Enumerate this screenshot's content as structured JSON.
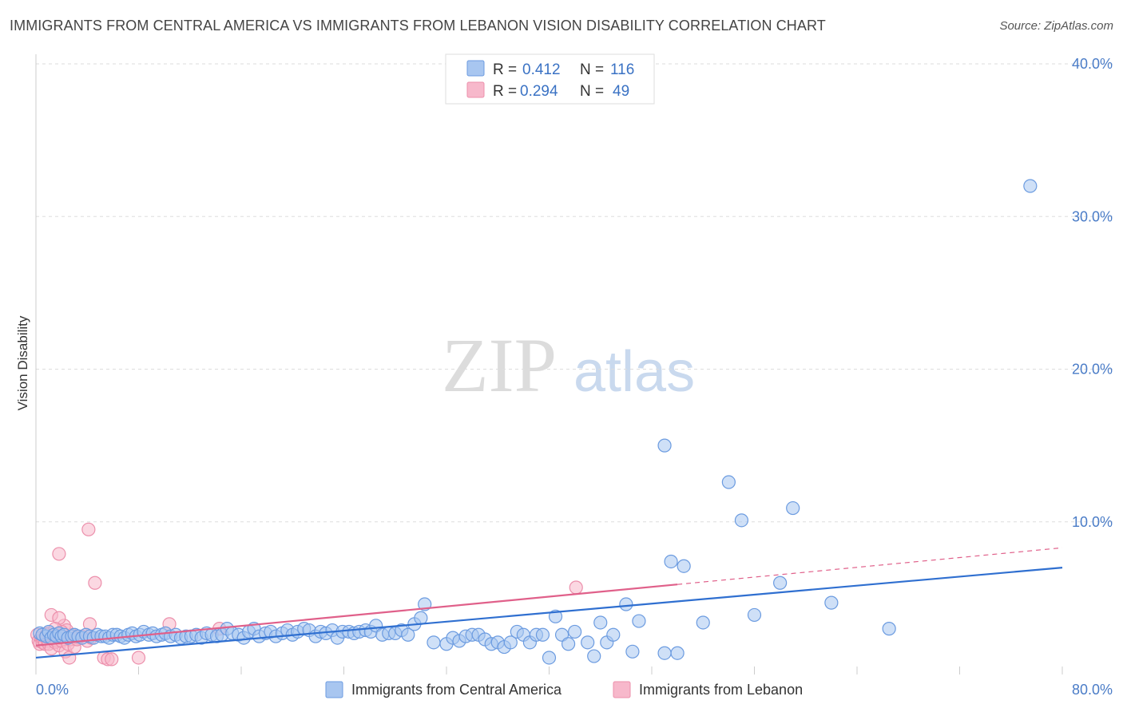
{
  "header": {
    "title": "IMMIGRANTS FROM CENTRAL AMERICA VS IMMIGRANTS FROM LEBANON VISION DISABILITY CORRELATION CHART",
    "source": "Source: ZipAtlas.com"
  },
  "watermark": {
    "zip": "ZIP",
    "atlas": "atlas"
  },
  "legend_top": {
    "series": [
      {
        "r_label": "R =",
        "r_value": "0.412",
        "n_label": "N =",
        "n_value": "116"
      },
      {
        "r_label": "R =",
        "r_value": "0.294",
        "n_label": "N =",
        "n_value": "49"
      }
    ]
  },
  "legend_bottom": {
    "items": [
      "Immigrants from Central America",
      "Immigrants from Lebanon"
    ]
  },
  "colors": {
    "blue_fill": "#a8c6f0",
    "blue_stroke": "#6b9be0",
    "blue_line": "#2f6fd0",
    "pink_fill": "#f7b8cb",
    "pink_stroke": "#ec8fab",
    "pink_line": "#e0608a",
    "grid": "#dddddd",
    "tick_text": "#4a7cc7"
  },
  "chart_data": {
    "type": "scatter",
    "title": "IMMIGRANTS FROM CENTRAL AMERICA VS IMMIGRANTS FROM LEBANON VISION DISABILITY CORRELATION CHART",
    "xlabel": "",
    "ylabel": "Vision Disability",
    "xlim": [
      0,
      80
    ],
    "ylim": [
      0,
      40
    ],
    "x_tick_labels": [
      "0.0%",
      "80.0%"
    ],
    "y_tick_labels": [
      "10.0%",
      "20.0%",
      "30.0%",
      "40.0%"
    ],
    "y_ticks": [
      10,
      20,
      30,
      40
    ],
    "grid": true,
    "series": [
      {
        "name": "Immigrants from Central America",
        "r": 0.412,
        "n": 116,
        "trend": {
          "x": [
            0,
            80
          ],
          "y": [
            1.1,
            7.0
          ]
        },
        "points": [
          [
            0.3,
            2.7
          ],
          [
            0.5,
            2.6
          ],
          [
            0.8,
            2.5
          ],
          [
            1.0,
            2.8
          ],
          [
            1.2,
            2.4
          ],
          [
            1.4,
            2.6
          ],
          [
            1.6,
            2.5
          ],
          [
            1.8,
            2.7
          ],
          [
            2.0,
            2.5
          ],
          [
            2.2,
            2.6
          ],
          [
            2.5,
            2.4
          ],
          [
            2.8,
            2.5
          ],
          [
            3.0,
            2.6
          ],
          [
            3.3,
            2.5
          ],
          [
            3.6,
            2.4
          ],
          [
            3.9,
            2.6
          ],
          [
            4.2,
            2.5
          ],
          [
            4.5,
            2.4
          ],
          [
            4.8,
            2.6
          ],
          [
            5.1,
            2.5
          ],
          [
            5.4,
            2.5
          ],
          [
            5.7,
            2.4
          ],
          [
            6.0,
            2.6
          ],
          [
            6.3,
            2.6
          ],
          [
            6.6,
            2.5
          ],
          [
            6.9,
            2.4
          ],
          [
            7.2,
            2.6
          ],
          [
            7.5,
            2.7
          ],
          [
            7.8,
            2.5
          ],
          [
            8.1,
            2.6
          ],
          [
            8.4,
            2.8
          ],
          [
            8.8,
            2.6
          ],
          [
            9.1,
            2.7
          ],
          [
            9.4,
            2.5
          ],
          [
            9.8,
            2.6
          ],
          [
            10.1,
            2.7
          ],
          [
            10.5,
            2.5
          ],
          [
            10.9,
            2.6
          ],
          [
            11.3,
            2.4
          ],
          [
            11.7,
            2.5
          ],
          [
            12.1,
            2.5
          ],
          [
            12.5,
            2.6
          ],
          [
            12.9,
            2.4
          ],
          [
            13.3,
            2.7
          ],
          [
            13.7,
            2.6
          ],
          [
            14.1,
            2.5
          ],
          [
            14.5,
            2.6
          ],
          [
            14.9,
            3.0
          ],
          [
            15.3,
            2.7
          ],
          [
            15.8,
            2.6
          ],
          [
            16.2,
            2.4
          ],
          [
            16.6,
            2.8
          ],
          [
            17.0,
            3.0
          ],
          [
            17.4,
            2.5
          ],
          [
            17.9,
            2.7
          ],
          [
            18.3,
            2.8
          ],
          [
            18.7,
            2.5
          ],
          [
            19.2,
            2.7
          ],
          [
            19.6,
            2.9
          ],
          [
            20.0,
            2.6
          ],
          [
            20.4,
            2.8
          ],
          [
            20.9,
            3.0
          ],
          [
            21.3,
            2.9
          ],
          [
            21.8,
            2.5
          ],
          [
            22.2,
            2.8
          ],
          [
            22.6,
            2.7
          ],
          [
            23.1,
            2.9
          ],
          [
            23.5,
            2.4
          ],
          [
            23.9,
            2.8
          ],
          [
            24.4,
            2.8
          ],
          [
            24.8,
            2.7
          ],
          [
            25.2,
            2.8
          ],
          [
            25.7,
            2.9
          ],
          [
            26.1,
            2.8
          ],
          [
            26.5,
            3.2
          ],
          [
            27.0,
            2.6
          ],
          [
            27.5,
            2.7
          ],
          [
            28.0,
            2.7
          ],
          [
            28.5,
            2.9
          ],
          [
            29.0,
            2.6
          ],
          [
            29.5,
            3.3
          ],
          [
            30.0,
            3.7
          ],
          [
            30.3,
            4.6
          ],
          [
            31.0,
            2.1
          ],
          [
            32.0,
            2.0
          ],
          [
            32.5,
            2.4
          ],
          [
            33.0,
            2.2
          ],
          [
            33.5,
            2.5
          ],
          [
            34.0,
            2.6
          ],
          [
            34.5,
            2.6
          ],
          [
            35.0,
            2.3
          ],
          [
            35.5,
            2.0
          ],
          [
            36.0,
            2.1
          ],
          [
            36.5,
            1.8
          ],
          [
            37.0,
            2.1
          ],
          [
            37.5,
            2.8
          ],
          [
            38.0,
            2.6
          ],
          [
            38.5,
            2.1
          ],
          [
            39.0,
            2.6
          ],
          [
            39.5,
            2.6
          ],
          [
            40.0,
            1.1
          ],
          [
            40.5,
            3.8
          ],
          [
            41.0,
            2.6
          ],
          [
            41.5,
            2.0
          ],
          [
            42.0,
            2.8
          ],
          [
            43.0,
            2.1
          ],
          [
            43.5,
            1.2
          ],
          [
            44.0,
            3.4
          ],
          [
            44.5,
            2.1
          ],
          [
            45.0,
            2.6
          ],
          [
            46.0,
            4.6
          ],
          [
            46.5,
            1.5
          ],
          [
            47.0,
            3.5
          ],
          [
            49.0,
            1.4
          ],
          [
            50.0,
            1.4
          ],
          [
            49.5,
            7.4
          ],
          [
            50.5,
            7.1
          ],
          [
            52.0,
            3.4
          ],
          [
            56.0,
            3.9
          ],
          [
            58.0,
            6.0
          ],
          [
            62.0,
            4.7
          ],
          [
            66.5,
            3.0
          ],
          [
            49.0,
            15.0
          ],
          [
            54.0,
            12.6
          ],
          [
            55.0,
            10.1
          ],
          [
            59.0,
            10.9
          ],
          [
            77.5,
            32.0
          ]
        ]
      },
      {
        "name": "Immigrants from Lebanon",
        "r": 0.294,
        "n": 49,
        "trend": {
          "x": [
            0,
            50
          ],
          "y": [
            1.9,
            5.9
          ]
        },
        "trend_dashed": {
          "x": [
            50,
            80
          ],
          "y": [
            5.9,
            8.3
          ]
        },
        "points": [
          [
            0.1,
            2.6
          ],
          [
            0.2,
            2.2
          ],
          [
            0.3,
            2.0
          ],
          [
            0.4,
            2.4
          ],
          [
            0.5,
            2.1
          ],
          [
            0.6,
            2.3
          ],
          [
            0.7,
            2.0
          ],
          [
            0.8,
            2.6
          ],
          [
            0.9,
            2.2
          ],
          [
            1.0,
            2.0
          ],
          [
            1.1,
            2.4
          ],
          [
            1.2,
            1.7
          ],
          [
            1.3,
            2.5
          ],
          [
            1.4,
            2.3
          ],
          [
            1.5,
            2.1
          ],
          [
            1.6,
            2.2
          ],
          [
            1.7,
            2.6
          ],
          [
            1.8,
            1.9
          ],
          [
            1.9,
            2.4
          ],
          [
            2.0,
            2.2
          ],
          [
            2.2,
            3.2
          ],
          [
            2.3,
            1.5
          ],
          [
            2.5,
            2.0
          ],
          [
            2.6,
            1.1
          ],
          [
            2.7,
            2.3
          ],
          [
            2.8,
            2.6
          ],
          [
            3.0,
            1.8
          ],
          [
            3.3,
            2.4
          ],
          [
            3.6,
            2.5
          ],
          [
            4.0,
            2.2
          ],
          [
            4.3,
            2.4
          ],
          [
            1.2,
            3.9
          ],
          [
            1.8,
            3.7
          ],
          [
            4.2,
            3.3
          ],
          [
            5.3,
            1.1
          ],
          [
            5.6,
            1.0
          ],
          [
            5.9,
            1.0
          ],
          [
            8.0,
            1.1
          ],
          [
            10.4,
            3.3
          ],
          [
            14.3,
            3.0
          ],
          [
            4.1,
            9.5
          ],
          [
            1.8,
            7.9
          ],
          [
            4.6,
            6.0
          ],
          [
            42.1,
            5.7
          ],
          [
            2.4,
            2.9
          ],
          [
            1.0,
            2.7
          ],
          [
            3.2,
            2.3
          ],
          [
            2.0,
            2.8
          ],
          [
            1.5,
            3.0
          ]
        ]
      }
    ]
  }
}
